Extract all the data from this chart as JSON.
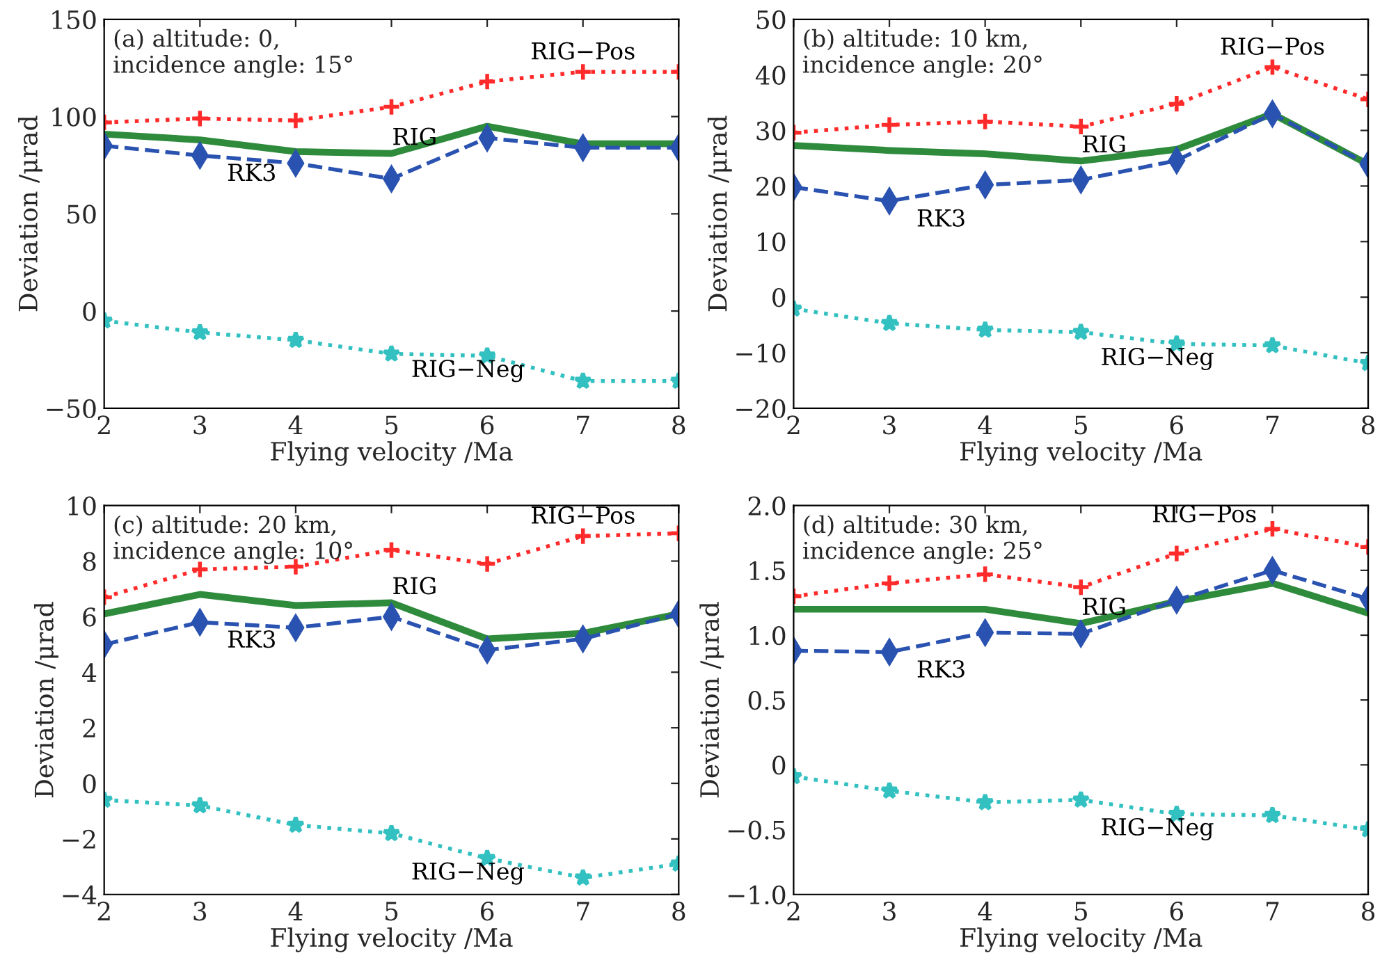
{
  "chart_data": [
    {
      "type": "line",
      "annotations": [
        "(a) altitude: 0,\nincidence angle: 15°"
      ],
      "xlabel": "Flying velocity /Ma",
      "ylabel": "Deviation /μrad",
      "x": [
        2,
        3,
        4,
        5,
        6,
        7,
        8
      ],
      "xlim": [
        2,
        8
      ],
      "xticks": [
        2,
        3,
        4,
        5,
        6,
        7,
        8
      ],
      "ylim": [
        -50,
        150
      ],
      "yticks": [
        {
          "value": -50,
          "label": "−50"
        },
        0,
        50,
        100,
        150
      ],
      "series": [
        {
          "name": "RIG−Pos",
          "color": "#ff2a2a",
          "marker": "cross",
          "line_style": "dotted",
          "values": [
            97,
            99,
            98,
            105,
            118,
            123,
            123
          ]
        },
        {
          "name": "RIG",
          "color": "#2e8b3c",
          "marker": "none",
          "line_style": "solid",
          "values": [
            91,
            88,
            82,
            81,
            95,
            86,
            86
          ]
        },
        {
          "name": "RK3",
          "color": "#2a52b0",
          "marker": "diamond",
          "line_style": "dashed",
          "values": [
            85,
            80,
            76,
            68,
            89,
            84,
            84
          ]
        },
        {
          "name": "RIG−Neg",
          "color": "#33c0c0",
          "marker": "star",
          "line_style": "dotted",
          "values": [
            -5,
            -11,
            -15,
            -22,
            -23,
            -36,
            -36
          ]
        }
      ]
    },
    {
      "type": "line",
      "annotations": [
        "(b) altitude: 10 km,\nincidence angle: 20°"
      ],
      "xlabel": "Flying velocity /Ma",
      "ylabel": "Deviation /μrad",
      "x": [
        2,
        3,
        4,
        5,
        6,
        7,
        8
      ],
      "xlim": [
        2,
        8
      ],
      "xticks": [
        2,
        3,
        4,
        5,
        6,
        7,
        8
      ],
      "ylim": [
        -20,
        50
      ],
      "yticks": [
        {
          "value": -20,
          "label": "−20"
        },
        {
          "value": -10,
          "label": "−10"
        },
        0,
        10,
        20,
        30,
        40,
        50
      ],
      "series": [
        {
          "name": "RIG−Pos",
          "color": "#ff2a2a",
          "marker": "cross",
          "line_style": "dotted",
          "values": [
            29.6,
            31,
            31.6,
            30.7,
            34.8,
            41.4,
            35.6
          ]
        },
        {
          "name": "RIG",
          "color": "#2e8b3c",
          "marker": "none",
          "line_style": "solid",
          "values": [
            27.3,
            26.4,
            25.8,
            24.5,
            26.6,
            33,
            23.9
          ]
        },
        {
          "name": "RK3",
          "color": "#2a52b0",
          "marker": "diamond",
          "line_style": "dashed",
          "values": [
            19.8,
            17.3,
            20.2,
            21.1,
            24.6,
            33,
            23.9
          ]
        },
        {
          "name": "RIG−Neg",
          "color": "#33c0c0",
          "marker": "star",
          "line_style": "dotted",
          "values": [
            -2.1,
            -4.7,
            -5.9,
            -6.3,
            -8.4,
            -8.7,
            -11.9
          ]
        }
      ]
    },
    {
      "type": "line",
      "annotations": [
        "(c) altitude: 20 km,\nincidence angle: 10°"
      ],
      "xlabel": "Flying velocity /Ma",
      "ylabel": "Deviation /μrad",
      "x": [
        2,
        3,
        4,
        5,
        6,
        7,
        8
      ],
      "xlim": [
        2,
        8
      ],
      "xticks": [
        2,
        3,
        4,
        5,
        6,
        7,
        8
      ],
      "ylim": [
        -4,
        10
      ],
      "yticks": [
        {
          "value": -4,
          "label": "−4"
        },
        {
          "value": -2,
          "label": "−2"
        },
        0,
        2,
        4,
        6,
        8,
        10
      ],
      "series": [
        {
          "name": "RIG−Pos",
          "color": "#ff2a2a",
          "marker": "cross",
          "line_style": "dotted",
          "values": [
            6.7,
            7.7,
            7.8,
            8.4,
            7.9,
            8.9,
            9.0
          ]
        },
        {
          "name": "RIG",
          "color": "#2e8b3c",
          "marker": "none",
          "line_style": "solid",
          "values": [
            6.1,
            6.8,
            6.4,
            6.5,
            5.2,
            5.4,
            6.1
          ]
        },
        {
          "name": "RK3",
          "color": "#2a52b0",
          "marker": "diamond",
          "line_style": "dashed",
          "values": [
            5.0,
            5.8,
            5.6,
            6.0,
            4.8,
            5.2,
            6.1
          ]
        },
        {
          "name": "RIG−Neg",
          "color": "#33c0c0",
          "marker": "star",
          "line_style": "dotted",
          "values": [
            -0.6,
            -0.8,
            -1.5,
            -1.8,
            -2.7,
            -3.4,
            -2.9
          ]
        }
      ]
    },
    {
      "type": "line",
      "annotations": [
        "(d) altitude: 30 km,\nincidence angle: 25°"
      ],
      "xlabel": "Flying velocity /Ma",
      "ylabel": "Deviation /μrad",
      "x": [
        2,
        3,
        4,
        5,
        6,
        7,
        8
      ],
      "xlim": [
        2,
        8
      ],
      "xticks": [
        2,
        3,
        4,
        5,
        6,
        7,
        8
      ],
      "ylim": [
        -1.0,
        2.0
      ],
      "yticks": [
        {
          "value": -1.0,
          "label": "−1.0"
        },
        {
          "value": -0.5,
          "label": "−0.5"
        },
        0,
        0.5,
        {
          "value": 1.0,
          "label": "1.0"
        },
        1.5,
        {
          "value": 2.0,
          "label": "2.0"
        }
      ],
      "series": [
        {
          "name": "RIG−Pos",
          "color": "#ff2a2a",
          "marker": "cross",
          "line_style": "dotted",
          "values": [
            1.3,
            1.4,
            1.47,
            1.37,
            1.63,
            1.82,
            1.68
          ]
        },
        {
          "name": "RIG",
          "color": "#2e8b3c",
          "marker": "none",
          "line_style": "solid",
          "values": [
            1.2,
            1.2,
            1.2,
            1.09,
            1.26,
            1.4,
            1.17
          ]
        },
        {
          "name": "RK3",
          "color": "#2a52b0",
          "marker": "diamond",
          "line_style": "dashed",
          "values": [
            0.88,
            0.87,
            1.02,
            1.01,
            1.27,
            1.5,
            1.28
          ]
        },
        {
          "name": "RIG−Neg",
          "color": "#33c0c0",
          "marker": "star",
          "line_style": "dotted",
          "values": [
            -0.09,
            -0.2,
            -0.29,
            -0.27,
            -0.38,
            -0.39,
            -0.5
          ]
        }
      ]
    }
  ]
}
